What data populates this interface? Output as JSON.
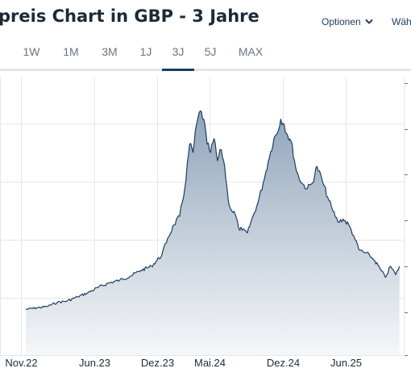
{
  "header": {
    "title": "preis Chart in GBP - 3 Jahre",
    "options_label": "Optionen",
    "currency_label": "Währ"
  },
  "tabs": [
    {
      "label": "1W",
      "active": false
    },
    {
      "label": "1M",
      "active": false
    },
    {
      "label": "3M",
      "active": false
    },
    {
      "label": "1J",
      "active": false
    },
    {
      "label": "3J",
      "active": true
    },
    {
      "label": "5J",
      "active": false
    },
    {
      "label": "MAX",
      "active": false
    }
  ],
  "colors": {
    "line": "#1c3e63",
    "fill_top": "#8a9fb6",
    "fill_bottom": "#f4f6f8",
    "grid": "#e4e7ea",
    "accent": "#1c3e63"
  },
  "chart_data": {
    "type": "area",
    "title": "",
    "xlabel": "",
    "ylabel": "",
    "x_tick_labels": [
      "Nov.22",
      "Jun.23",
      "Dez.23",
      "Mai.24",
      "Dez.24",
      "Jun.25"
    ],
    "x_ticks": [
      "2022-11-01",
      "2023-06-01",
      "2023-12-01",
      "2024-05-01",
      "2024-12-01",
      "2025-06-01"
    ],
    "xlim": [
      "2022-09-01",
      "2025-11-15"
    ],
    "ylim": [
      0,
      1
    ],
    "y_note": "y-axis tick labels are cut off at the right edge; values are relative to the visible plot height",
    "grid": true,
    "series": [
      {
        "x": [
          "2022-11-15",
          "2022-12-15",
          "2023-01-15",
          "2023-02-15",
          "2023-03-15",
          "2023-04-15",
          "2023-05-15",
          "2023-06-15",
          "2023-07-15",
          "2023-08-15",
          "2023-09-15",
          "2023-10-15",
          "2023-11-15",
          "2023-12-15",
          "2024-01-01",
          "2024-01-20",
          "2024-02-05",
          "2024-02-20",
          "2024-03-05",
          "2024-03-15",
          "2024-03-25",
          "2024-04-05",
          "2024-04-15",
          "2024-04-25",
          "2024-05-05",
          "2024-05-15",
          "2024-05-25",
          "2024-06-05",
          "2024-06-15",
          "2024-06-25",
          "2024-07-05",
          "2024-07-15",
          "2024-07-25",
          "2024-08-05",
          "2024-08-20",
          "2024-09-05",
          "2024-09-20",
          "2024-10-05",
          "2024-10-20",
          "2024-11-05",
          "2024-11-15",
          "2024-11-25",
          "2024-12-05",
          "2024-12-15",
          "2024-12-25",
          "2025-01-10",
          "2025-01-25",
          "2025-02-10",
          "2025-02-25",
          "2025-03-10",
          "2025-03-25",
          "2025-04-10",
          "2025-04-25",
          "2025-05-10",
          "2025-05-25",
          "2025-06-10",
          "2025-06-25",
          "2025-07-10",
          "2025-07-25",
          "2025-08-10",
          "2025-08-25",
          "2025-09-10",
          "2025-09-25",
          "2025-10-10",
          "2025-10-25",
          "2025-11-05"
        ],
        "values": [
          0.165,
          0.17,
          0.175,
          0.19,
          0.195,
          0.21,
          0.225,
          0.245,
          0.26,
          0.27,
          0.285,
          0.305,
          0.32,
          0.36,
          0.42,
          0.47,
          0.5,
          0.6,
          0.76,
          0.73,
          0.83,
          0.88,
          0.85,
          0.76,
          0.73,
          0.78,
          0.7,
          0.74,
          0.68,
          0.56,
          0.52,
          0.51,
          0.46,
          0.45,
          0.44,
          0.5,
          0.55,
          0.62,
          0.7,
          0.78,
          0.8,
          0.85,
          0.83,
          0.79,
          0.77,
          0.66,
          0.62,
          0.6,
          0.62,
          0.68,
          0.63,
          0.57,
          0.52,
          0.48,
          0.49,
          0.47,
          0.43,
          0.38,
          0.37,
          0.36,
          0.34,
          0.31,
          0.28,
          0.32,
          0.29,
          0.32
        ]
      }
    ]
  }
}
